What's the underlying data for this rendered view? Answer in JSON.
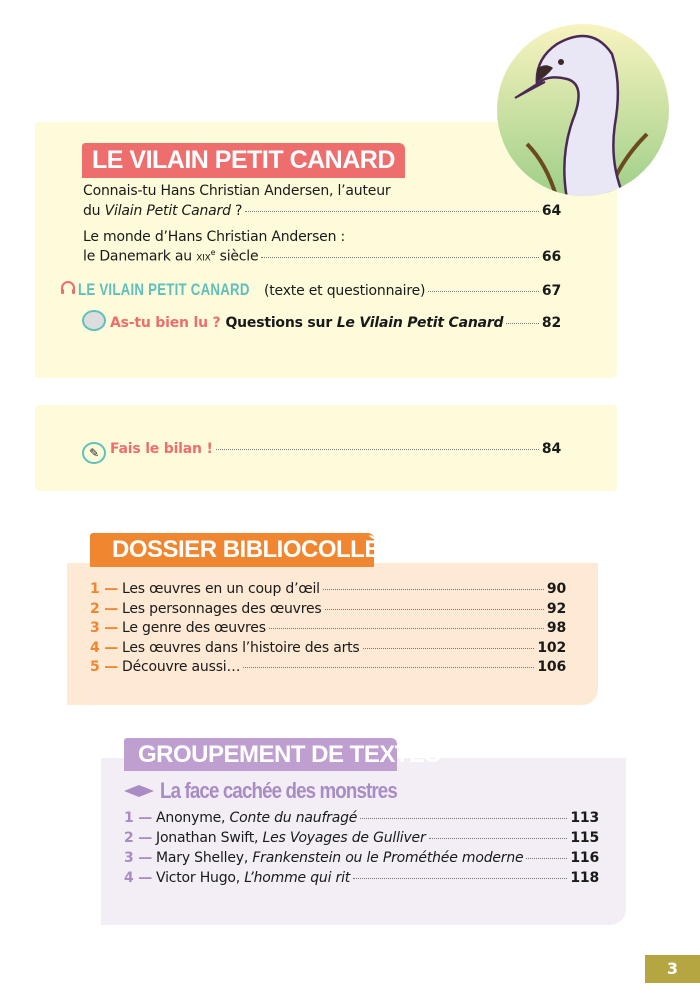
{
  "section1": {
    "title": "LE VILAIN PETIT CANARD",
    "color": "#ee6e6e",
    "entries": [
      {
        "line1": "Connais-tu Hans Christian Andersen, l’auteur",
        "line2_pre": "du ",
        "line2_italic": "Vilain Petit Canard",
        "line2_post": " ?",
        "page": "64"
      },
      {
        "line1": "Le monde d’Hans Christian Andersen :",
        "line2_pre": "le Danemark au ",
        "line2_century": "XIX",
        "line2_sup": "e",
        "line2_post": " siècle",
        "page": "66"
      }
    ],
    "text_entry": {
      "icon": "headphones-icon",
      "title": "LE VILAIN PETIT CANARD",
      "subtitle": "(texte et questionnaire)",
      "page": "67"
    },
    "quiz_entry": {
      "icon": "book-icon",
      "label": "As-tu bien lu ?",
      "text_pre": "Questions sur ",
      "text_italic": "Le Vilain Petit Canard",
      "page": "82"
    },
    "bilan_entry": {
      "icon": "pencil-icon",
      "label": "Fais le bilan !",
      "page": "84"
    }
  },
  "section2": {
    "title": "DOSSIER BIBLIOCOLLÈGE",
    "color": "#f0862f",
    "items": [
      {
        "num": "1 —",
        "text": "Les œuvres en un coup d’œil",
        "page": "90"
      },
      {
        "num": "2 —",
        "text": "Les personnages des œuvres",
        "page": "92"
      },
      {
        "num": "3 —",
        "text": "Le genre des œuvres",
        "page": "98"
      },
      {
        "num": "4 —",
        "text": "Les œuvres dans l’histoire des arts",
        "page": "102"
      },
      {
        "num": "5 —",
        "text": "Découvre aussi…",
        "page": "106"
      }
    ]
  },
  "section3": {
    "title": "GROUPEMENT DE TEXTES",
    "color": "#bf9fcf",
    "subtitle": "La face cachée des monstres",
    "items": [
      {
        "num": "1 —",
        "author": "Anonyme, ",
        "work": "Conte du naufragé",
        "page": "113"
      },
      {
        "num": "2 —",
        "author": "Jonathan Swift, ",
        "work": "Les Voyages de Gulliver",
        "page": "115"
      },
      {
        "num": "3 —",
        "author": "Mary Shelley, ",
        "work": "Frankenstein ou le Prométhée moderne",
        "page": "116"
      },
      {
        "num": "4 —",
        "author": "Victor Hugo, ",
        "work": "L’homme qui rit",
        "page": "118"
      }
    ]
  },
  "page_number": "3"
}
